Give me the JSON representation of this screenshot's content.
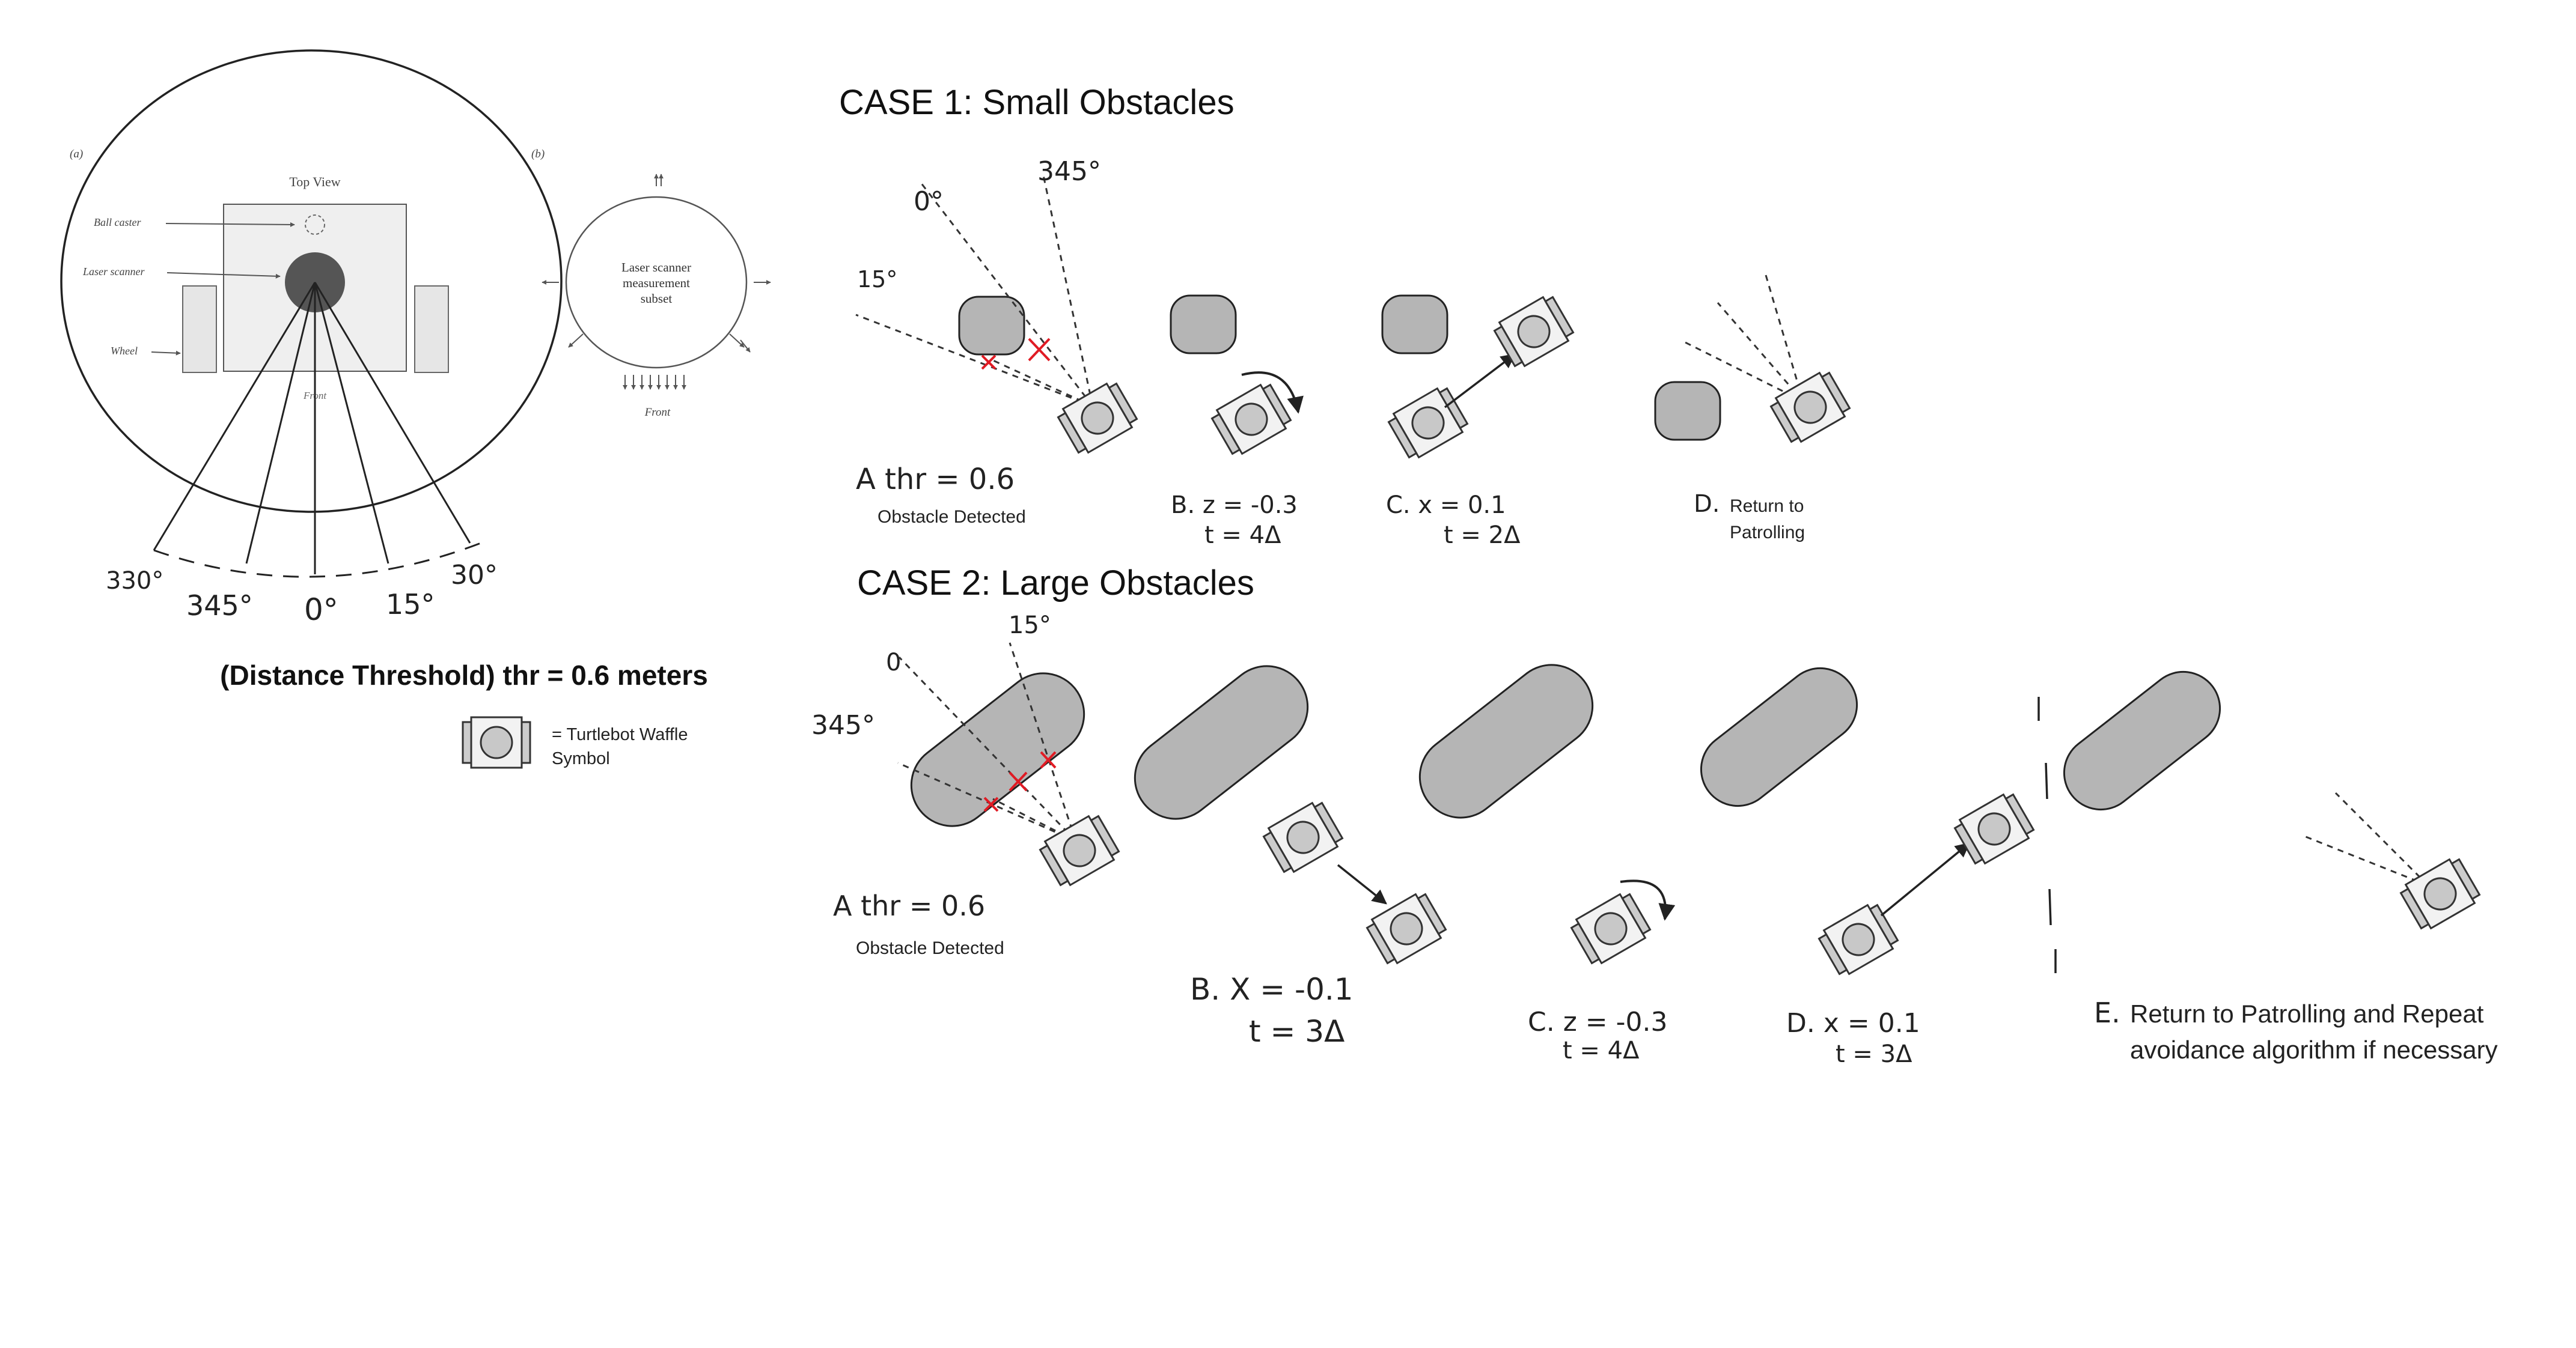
{
  "figure": {
    "panel_a_label": "(a)",
    "panel_b_label": "(b)",
    "top_view_title": "Top View",
    "ball_caster_label": "Ball caster",
    "laser_scanner_label": "Laser scanner",
    "wheel_label": "Wheel",
    "front_label_a": "Front",
    "subset_label_line1": "Laser scanner",
    "subset_label_line2": "measurement",
    "subset_label_line3": "subset",
    "front_label_b": "Front",
    "angle_labels": [
      "330°",
      "345°",
      "0°",
      "15°",
      "30°"
    ],
    "threshold_text": "(Distance Threshold) thr = 0.6 meters",
    "legend_line1": "= Turtlebot Waffle",
    "legend_line2": "Symbol"
  },
  "case1": {
    "title": "CASE 1: Small Obstacles",
    "angle_0": "0°",
    "angle_345": "345°",
    "angle_15": "15°",
    "step_a_formula": "A thr = 0.6",
    "step_a_caption": "Obstacle Detected",
    "step_b_line1": "B. z = -0.3",
    "step_b_line2": "t = 4Δ",
    "step_c_line1": "C. x = 0.1",
    "step_c_line2": "t = 2Δ",
    "step_d_prefix": "D.",
    "step_d_line1": "Return to",
    "step_d_line2": "Patrolling"
  },
  "case2": {
    "title": "CASE 2: Large Obstacles",
    "angle_0": "0",
    "angle_15": "15°",
    "angle_345": "345°",
    "step_a_formula": "A thr = 0.6",
    "step_a_caption": "Obstacle Detected",
    "step_b_line1": "B. X = -0.1",
    "step_b_line2": "t = 3Δ",
    "step_c_line1": "C. z = -0.3",
    "step_c_line2": "t = 4Δ",
    "step_d_line1": "D. x = 0.1",
    "step_d_line2": "t = 3Δ",
    "step_e_prefix": "E.",
    "step_e_line1": "Return to Patrolling and Repeat",
    "step_e_line2": "avoidance algorithm if necessary"
  }
}
